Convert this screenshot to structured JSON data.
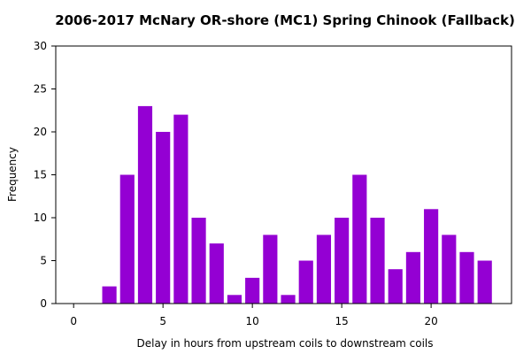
{
  "chart_data": {
    "type": "bar",
    "title": "2006-2017 McNary OR-shore (MC1) Spring Chinook (Fallback)",
    "xlabel": "Delay in hours from upstream coils to downstream coils",
    "ylabel": "Frequency",
    "xlim": [
      -1,
      24.5
    ],
    "ylim": [
      0,
      30
    ],
    "xticks": [
      0,
      5,
      10,
      15,
      20
    ],
    "yticks": [
      0,
      5,
      10,
      15,
      20,
      25,
      30
    ],
    "grid": false,
    "bar_color": "#9400d3",
    "x": [
      2,
      3,
      4,
      5,
      6,
      7,
      8,
      9,
      10,
      11,
      12,
      13,
      14,
      15,
      16,
      17,
      18,
      19,
      20,
      21,
      22,
      23
    ],
    "values": [
      2,
      15,
      23,
      20,
      22,
      10,
      7,
      1,
      3,
      8,
      1,
      5,
      8,
      10,
      15,
      10,
      4,
      6,
      11,
      8,
      6,
      5
    ]
  }
}
